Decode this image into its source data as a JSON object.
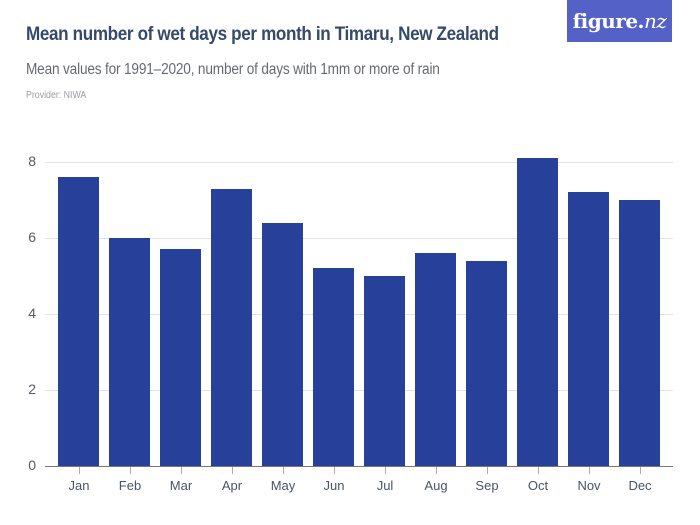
{
  "header": {
    "title": "Mean number of wet days per month in Timaru, New Zealand",
    "subtitle": "Mean values for 1991–2020, number of days with 1mm or more of rain",
    "provider": "Provider: NIWA",
    "logo_main": "figure.",
    "logo_suffix": "nz"
  },
  "colors": {
    "bar": "#27419a",
    "title": "#35496b",
    "logo_bg": "#5462c8",
    "gridline": "#e1e1e1"
  },
  "chart_data": {
    "type": "bar",
    "title": "Mean number of wet days per month in Timaru, New Zealand",
    "subtitle": "Mean values for 1991–2020, number of days with 1mm or more of rain",
    "xlabel": "",
    "ylabel": "",
    "categories": [
      "Jan",
      "Feb",
      "Mar",
      "Apr",
      "May",
      "Jun",
      "Jul",
      "Aug",
      "Sep",
      "Oct",
      "Nov",
      "Dec"
    ],
    "values": [
      7.6,
      6.0,
      5.7,
      7.3,
      6.4,
      5.2,
      5.0,
      5.6,
      5.4,
      8.1,
      7.2,
      7.0
    ],
    "ylim": [
      0,
      8
    ],
    "yticks": [
      "0",
      "2",
      "4",
      "6",
      "8"
    ],
    "grid": true,
    "legend": null
  }
}
